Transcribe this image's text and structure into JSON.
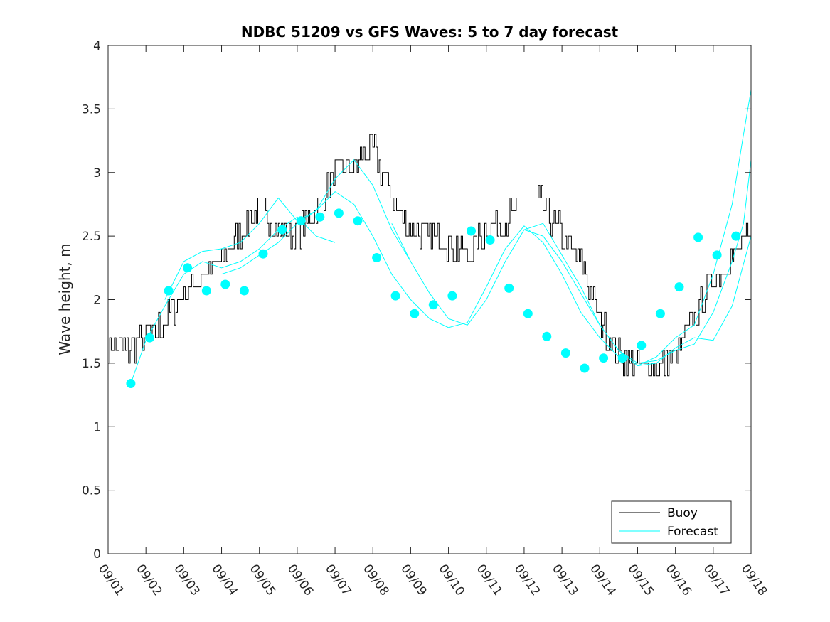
{
  "chart_data": {
    "type": "line",
    "title": "NDBC 51209 vs GFS Waves: 5 to 7 day forecast",
    "xlabel": "",
    "ylabel": "Wave height, m",
    "xlim": [
      0,
      17
    ],
    "ylim": [
      0,
      4
    ],
    "x_tick_labels": [
      "09/01",
      "09/02",
      "09/03",
      "09/04",
      "09/05",
      "09/06",
      "09/07",
      "09/08",
      "09/09",
      "09/10",
      "09/11",
      "09/12",
      "09/13",
      "09/14",
      "09/15",
      "09/16",
      "09/17",
      "09/18"
    ],
    "y_tick_labels": [
      "0",
      "0.5",
      "1",
      "1.5",
      "2",
      "2.5",
      "3",
      "3.5",
      "4"
    ],
    "legend": {
      "position": "bottom-right",
      "entries": [
        "Buoy",
        "Forecast"
      ]
    },
    "colors": {
      "buoy": "#000000",
      "forecast": "#00FFFF",
      "axis": "#262626"
    },
    "buoy": {
      "name": "Buoy",
      "x": [
        0.0,
        0.5,
        1.0,
        1.5,
        2.0,
        2.5,
        3.0,
        3.5,
        4.0,
        4.5,
        5.0,
        5.5,
        6.0,
        6.5,
        7.0,
        7.5,
        8.0,
        8.5,
        9.0,
        9.5,
        10.0,
        10.5,
        11.0,
        11.5,
        12.0,
        12.5,
        13.0,
        13.5,
        14.0,
        14.5,
        15.0,
        15.5,
        16.0,
        16.5,
        17.0
      ],
      "y": [
        1.65,
        1.6,
        1.7,
        1.82,
        2.05,
        2.2,
        2.3,
        2.55,
        2.7,
        2.55,
        2.52,
        2.7,
        3.0,
        3.05,
        3.2,
        2.8,
        2.55,
        2.5,
        2.45,
        2.35,
        2.55,
        2.6,
        2.8,
        2.75,
        2.5,
        2.3,
        1.85,
        1.55,
        1.48,
        1.45,
        1.55,
        1.85,
        2.15,
        2.35,
        2.5
      ],
      "noise_amplitude": 0.12
    },
    "forecast_markers": {
      "name": "Forecast",
      "x": [
        0.6,
        1.1,
        1.6,
        2.1,
        2.6,
        3.1,
        3.6,
        4.1,
        4.6,
        5.1,
        5.6,
        6.1,
        6.6,
        7.1,
        7.6,
        8.1,
        8.6,
        9.1,
        9.6,
        10.1,
        10.6,
        11.1,
        11.6,
        12.1,
        12.6,
        13.1,
        13.6,
        14.1,
        14.6,
        15.1,
        15.6,
        16.1,
        16.6
      ],
      "y": [
        1.34,
        1.7,
        2.07,
        2.25,
        2.07,
        2.12,
        2.07,
        2.36,
        2.55,
        2.62,
        2.65,
        2.68,
        2.62,
        2.33,
        2.03,
        1.89,
        1.96,
        2.03,
        2.54,
        2.47,
        2.09,
        1.89,
        1.71,
        1.58,
        1.46,
        1.54,
        1.54,
        1.64,
        1.89,
        2.1,
        2.49,
        2.35,
        2.5
      ]
    },
    "forecast_lines": [
      {
        "x": [
          0.6,
          1.0,
          1.5,
          2.0,
          2.5,
          3.0,
          3.5,
          4.0,
          4.5,
          5.0,
          5.5,
          6.0
        ],
        "y": [
          1.34,
          1.68,
          1.95,
          2.2,
          2.3,
          2.25,
          2.3,
          2.4,
          2.55,
          2.65,
          2.5,
          2.45
        ]
      },
      {
        "x": [
          1.5,
          2.0,
          2.5,
          3.0,
          3.5,
          4.0,
          4.5,
          5.0,
          5.5,
          6.0,
          6.5,
          7.0,
          7.5,
          8.0
        ],
        "y": [
          2.0,
          2.3,
          2.38,
          2.4,
          2.45,
          2.6,
          2.8,
          2.62,
          2.7,
          2.95,
          3.1,
          2.9,
          2.55,
          2.3
        ]
      },
      {
        "x": [
          3.0,
          3.5,
          4.0,
          4.5,
          5.0,
          5.5,
          6.0,
          6.5,
          7.0,
          7.5,
          8.0,
          8.5,
          9.0,
          9.5,
          10.0,
          10.5,
          11.0,
          11.5,
          12.0,
          12.5,
          13.0,
          13.5
        ],
        "y": [
          2.2,
          2.25,
          2.35,
          2.45,
          2.6,
          2.7,
          2.85,
          2.75,
          2.5,
          2.2,
          2.0,
          1.85,
          1.78,
          1.82,
          2.1,
          2.4,
          2.58,
          2.45,
          2.2,
          1.9,
          1.7,
          1.55
        ]
      },
      {
        "x": [
          7.5,
          8.0,
          8.5,
          9.0,
          9.5,
          10.0,
          10.5,
          11.0,
          11.5,
          12.0,
          12.5,
          13.0,
          13.5,
          14.0,
          14.5,
          15.0,
          15.5,
          16.0,
          16.5,
          17.0
        ],
        "y": [
          2.6,
          2.3,
          2.05,
          1.85,
          1.8,
          2.0,
          2.3,
          2.55,
          2.5,
          2.3,
          2.05,
          1.8,
          1.6,
          1.48,
          1.5,
          1.62,
          1.7,
          1.68,
          1.95,
          2.5
        ]
      },
      {
        "x": [
          11.0,
          11.5,
          12.0,
          12.5,
          13.0,
          13.5,
          14.0,
          14.5,
          15.0,
          15.5,
          16.0,
          16.5,
          16.8,
          17.0
        ],
        "y": [
          2.55,
          2.6,
          2.35,
          2.1,
          1.8,
          1.6,
          1.5,
          1.52,
          1.6,
          1.65,
          1.9,
          2.3,
          2.6,
          3.1
        ]
      },
      {
        "x": [
          14.0,
          14.5,
          15.0,
          15.5,
          16.0,
          16.5,
          16.8,
          17.0
        ],
        "y": [
          1.48,
          1.55,
          1.7,
          1.8,
          2.2,
          2.75,
          3.3,
          3.65
        ]
      }
    ]
  }
}
